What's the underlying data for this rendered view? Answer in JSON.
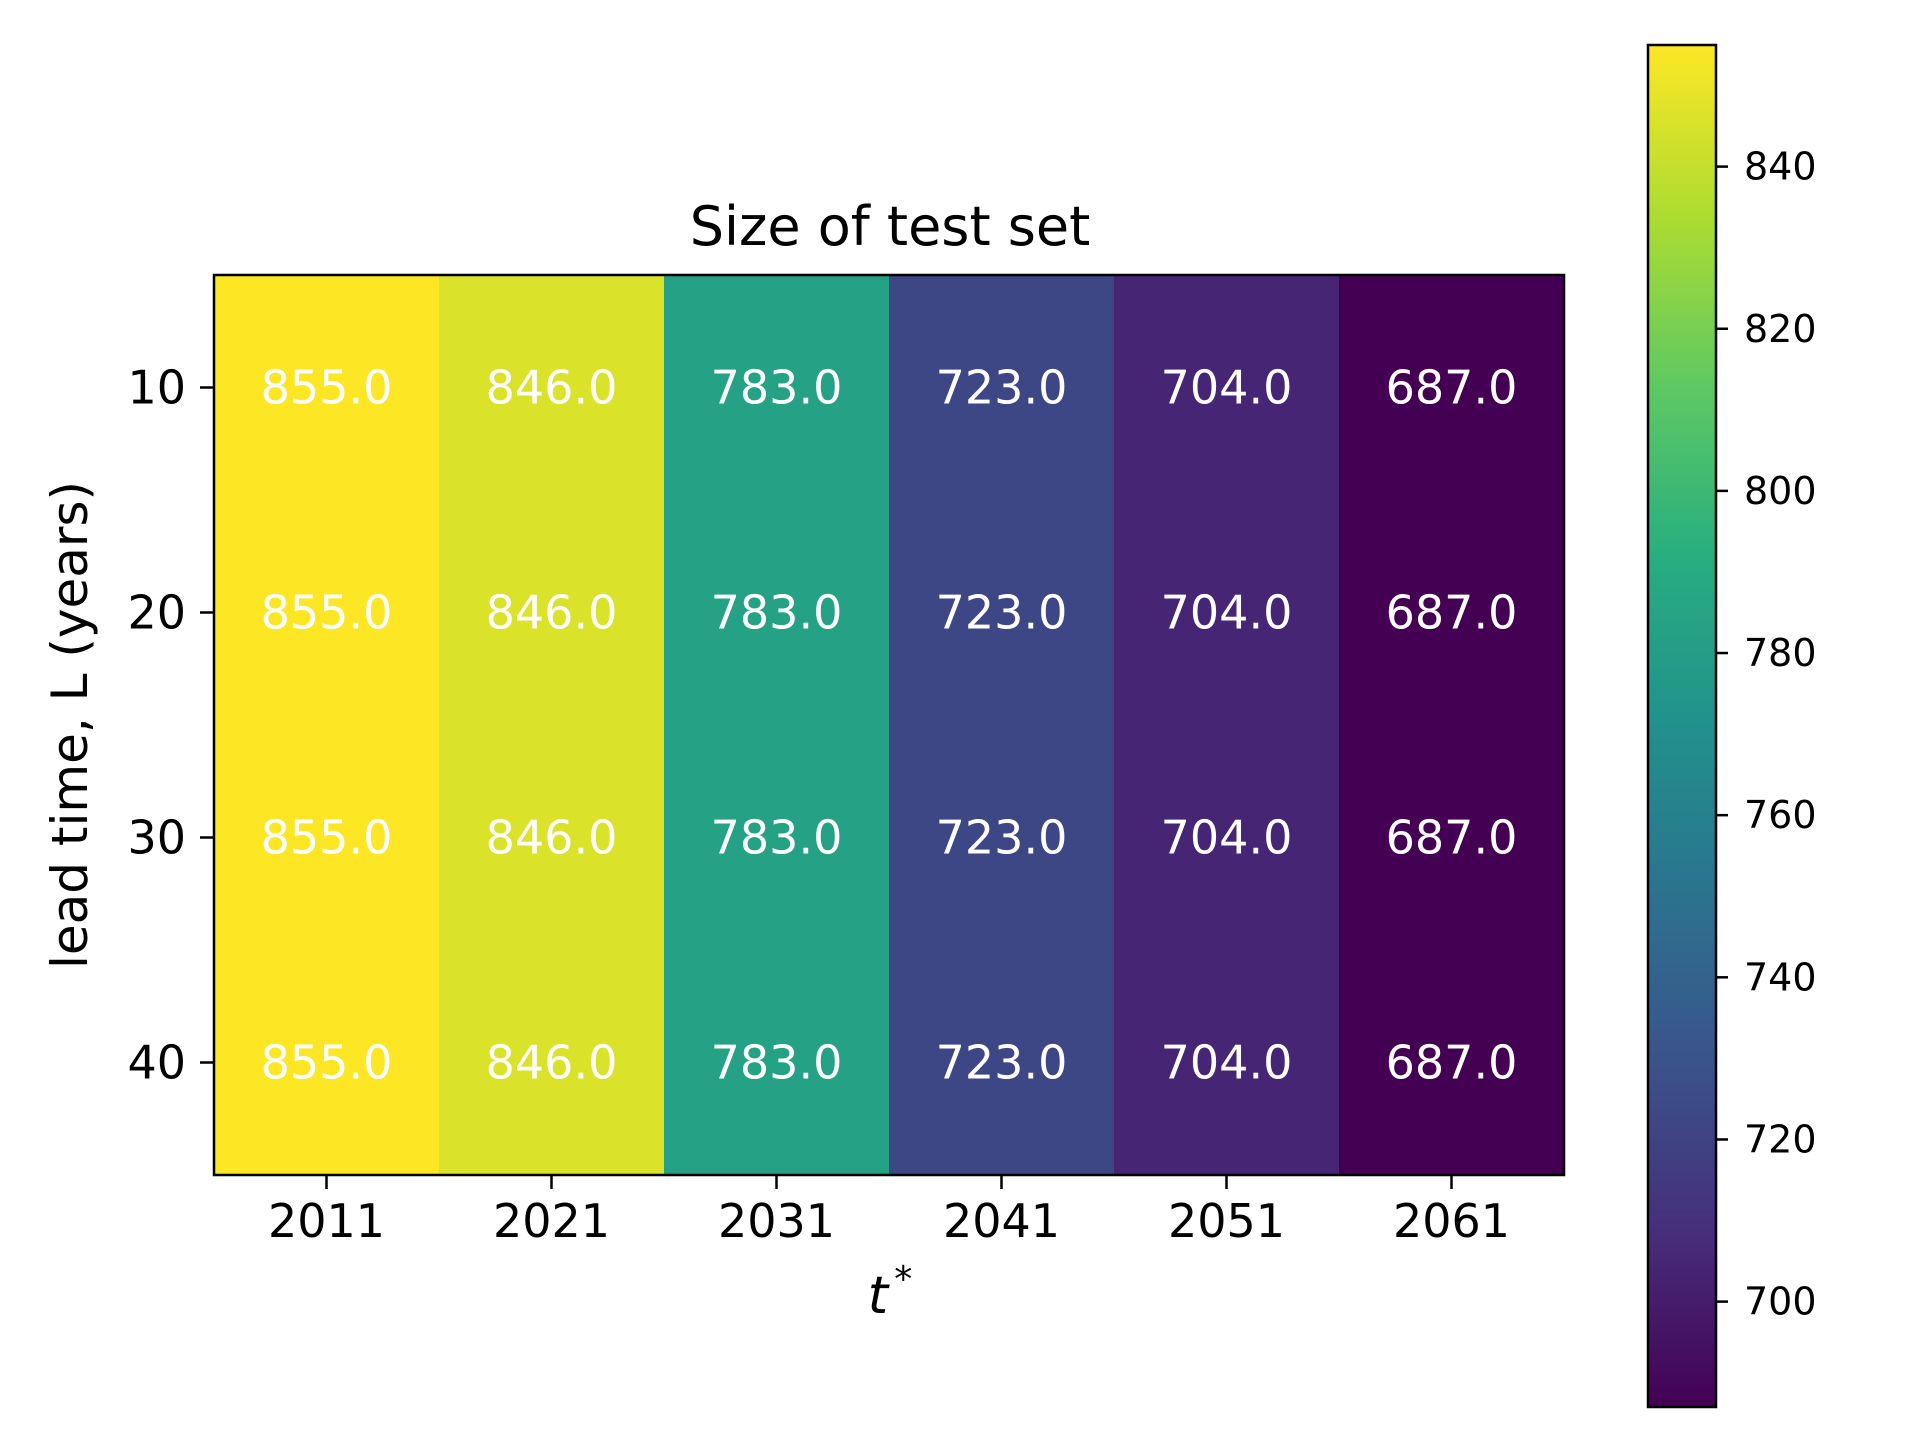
{
  "chart_data": {
    "type": "heatmap",
    "title": "Size of test set",
    "xlabel": "t*",
    "xlabel_base": "t",
    "xlabel_sup": "*",
    "ylabel": "lead time, L (years)",
    "x_categories": [
      "2011",
      "2021",
      "2031",
      "2041",
      "2051",
      "2061"
    ],
    "y_categories": [
      "10",
      "20",
      "30",
      "40"
    ],
    "values": [
      [
        855.0,
        846.0,
        783.0,
        723.0,
        704.0,
        687.0
      ],
      [
        855.0,
        846.0,
        783.0,
        723.0,
        704.0,
        687.0
      ],
      [
        855.0,
        846.0,
        783.0,
        723.0,
        704.0,
        687.0
      ],
      [
        855.0,
        846.0,
        783.0,
        723.0,
        704.0,
        687.0
      ]
    ],
    "cell_labels": [
      [
        "855.0",
        "846.0",
        "783.0",
        "723.0",
        "704.0",
        "687.0"
      ],
      [
        "855.0",
        "846.0",
        "783.0",
        "723.0",
        "704.0",
        "687.0"
      ],
      [
        "855.0",
        "846.0",
        "783.0",
        "723.0",
        "704.0",
        "687.0"
      ],
      [
        "855.0",
        "846.0",
        "783.0",
        "723.0",
        "704.0",
        "687.0"
      ]
    ],
    "colormap": "viridis",
    "colorbar": {
      "range": [
        687,
        855
      ],
      "ticks": [
        700,
        720,
        740,
        760,
        780,
        800,
        820,
        840
      ],
      "tick_labels": [
        "700",
        "720",
        "740",
        "760",
        "780",
        "800",
        "820",
        "840"
      ]
    },
    "grid": false,
    "legend": "colorbar-right"
  }
}
